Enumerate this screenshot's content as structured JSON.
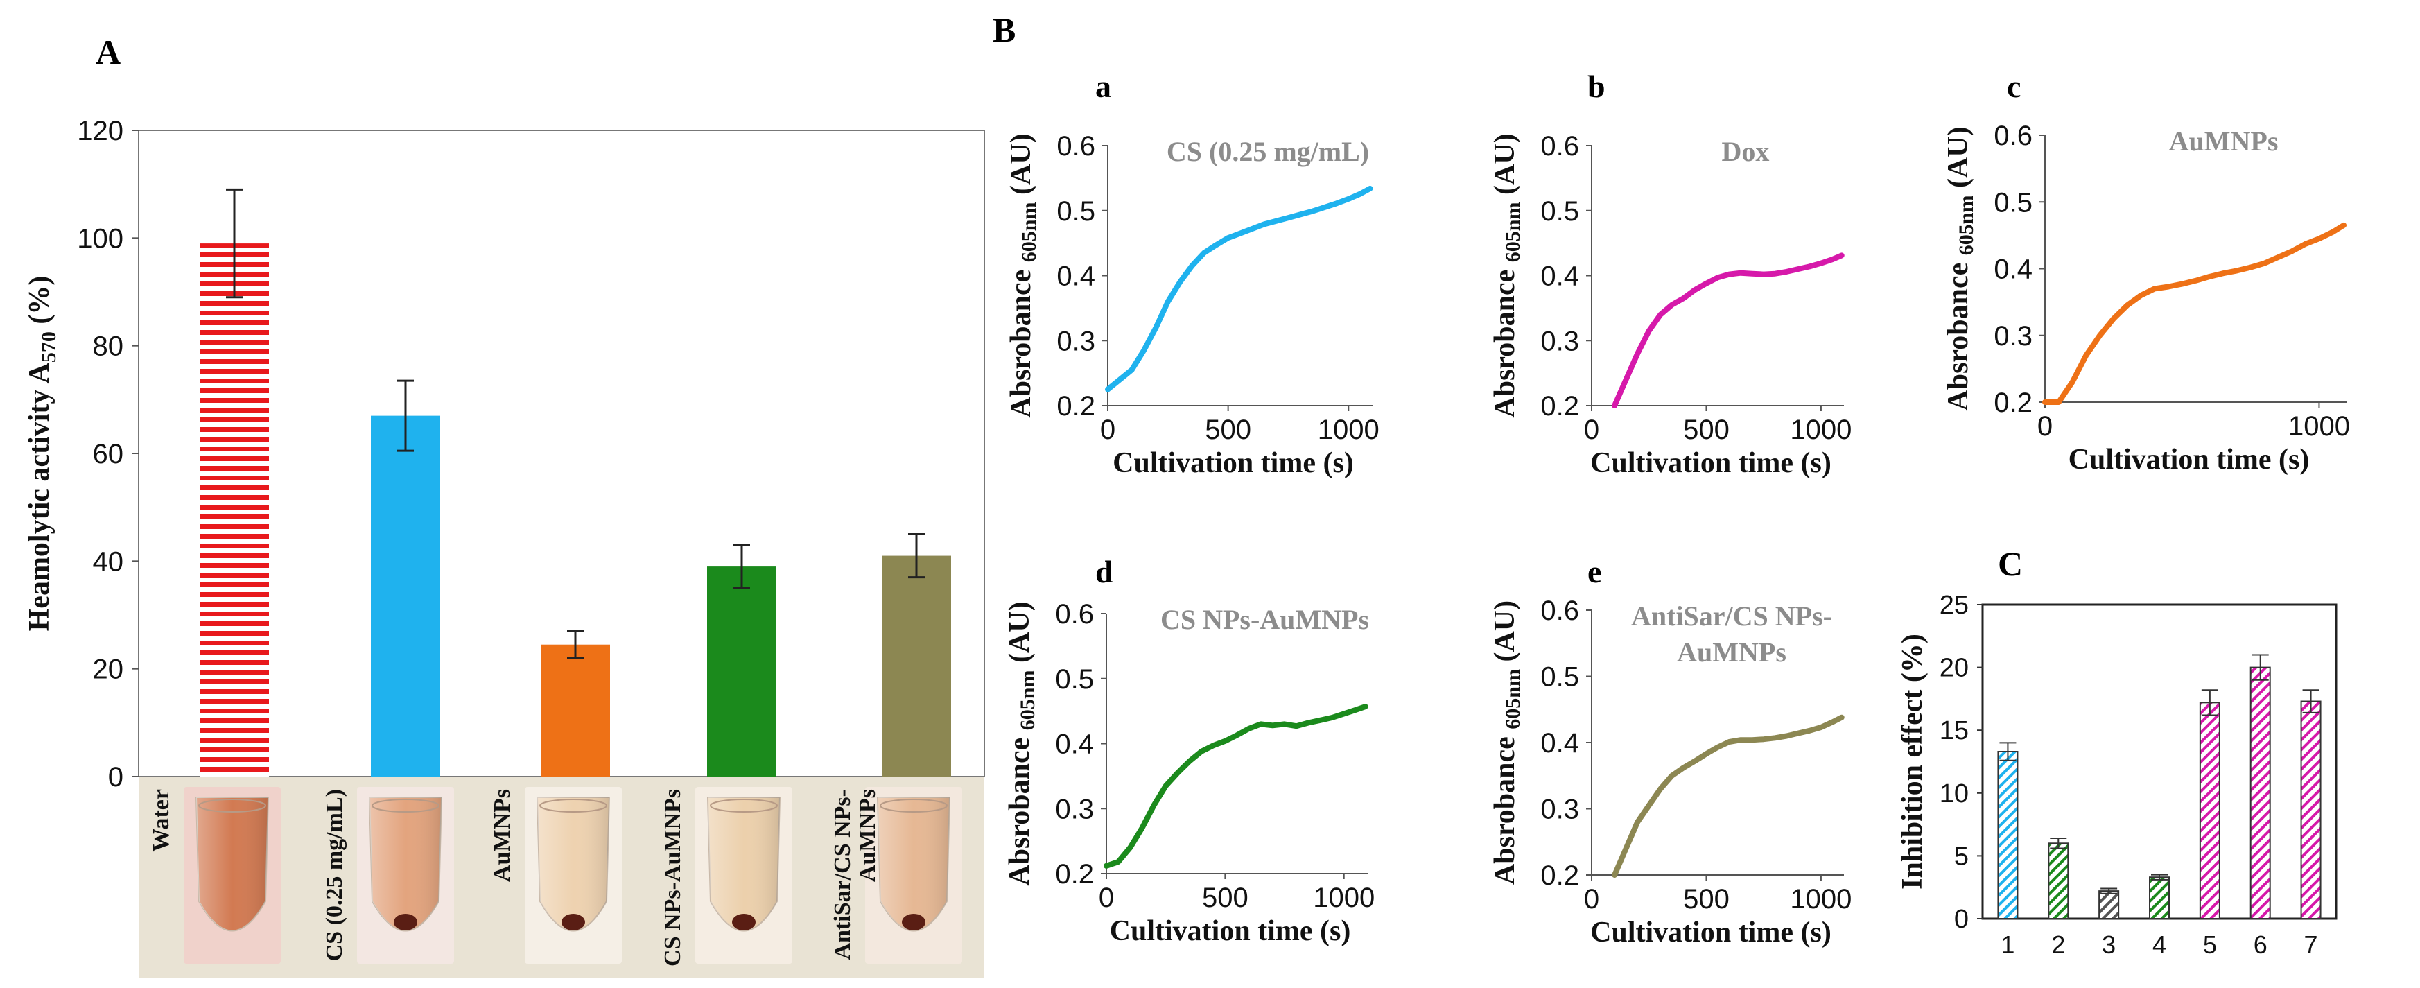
{
  "panel_labels": {
    "A": "A",
    "B": "B",
    "C": "C"
  },
  "chart_data": [
    {
      "id": "A",
      "type": "bar",
      "ylabel_main": "Heamolytic activity",
      "ylabel_chem": "A",
      "ylabel_sub": "570",
      "ylabel_unit": "(%)",
      "ylim": [
        0,
        120
      ],
      "yticks": [
        "0",
        "20",
        "40",
        "60",
        "80",
        "100",
        "120"
      ],
      "categories": [
        "Water",
        "CS (0.25 mg/mL)",
        "AuMNPs",
        "CS NPs-AuMNPs",
        "AntiSar/CS NPs-AuMNPs"
      ],
      "tube_labels": [
        [
          "Water"
        ],
        [
          "CS (0.25 mg/mL)"
        ],
        [
          "AuMNPs"
        ],
        [
          "CS NPs-AuMNPs"
        ],
        [
          "AntiSar/CS NPs-",
          "AuMNPs"
        ]
      ],
      "values": [
        99,
        67,
        24.5,
        39,
        41
      ],
      "errors": [
        10,
        6.5,
        2.5,
        4,
        4
      ],
      "colors": [
        "#e8191c",
        "#1fb2ee",
        "#ee7116",
        "#1b8a1c",
        "#8c8752"
      ],
      "patterns": [
        "hstripes",
        "solid",
        "solid",
        "solid",
        "solid"
      ]
    },
    {
      "id": "a",
      "type": "line",
      "title": "CS (0.25 mg/mL)",
      "color": "#1fb2ee",
      "xlabel": "Cultivation  time (s)",
      "ylabel": "Absrobance",
      "ylabel_sub": "605nm",
      "ylabel_unit": "(AU)",
      "xlim": [
        0,
        1100
      ],
      "ylim": [
        0.2,
        0.6
      ],
      "xticks": [
        "0",
        "500",
        "1000"
      ],
      "yticks": [
        "0.2",
        "0.3",
        "0.4",
        "0.5",
        "0.6"
      ],
      "x": [
        0,
        50,
        100,
        150,
        200,
        250,
        300,
        350,
        400,
        450,
        500,
        550,
        600,
        650,
        700,
        750,
        800,
        850,
        900,
        950,
        1000,
        1050,
        1090
      ],
      "y": [
        0.225,
        0.24,
        0.255,
        0.285,
        0.32,
        0.36,
        0.39,
        0.415,
        0.435,
        0.447,
        0.458,
        0.465,
        0.472,
        0.479,
        0.484,
        0.489,
        0.494,
        0.499,
        0.505,
        0.511,
        0.518,
        0.526,
        0.534
      ]
    },
    {
      "id": "b",
      "type": "line",
      "title": "Dox",
      "color": "#d619aa",
      "xlabel": "Cultivation  time (s)",
      "ylabel": "Absrobance",
      "ylabel_sub": "605nm",
      "ylabel_unit": "(AU)",
      "xlim": [
        0,
        1100
      ],
      "ylim": [
        0.2,
        0.6
      ],
      "xticks": [
        "0",
        "500",
        "1000"
      ],
      "yticks": [
        "0.2",
        "0.3",
        "0.4",
        "0.5",
        "0.6"
      ],
      "x": [
        100,
        150,
        200,
        250,
        300,
        350,
        400,
        450,
        500,
        550,
        600,
        650,
        700,
        750,
        800,
        850,
        900,
        950,
        1000,
        1050,
        1090
      ],
      "y": [
        0.2,
        0.24,
        0.28,
        0.315,
        0.34,
        0.355,
        0.365,
        0.378,
        0.388,
        0.397,
        0.402,
        0.404,
        0.403,
        0.402,
        0.403,
        0.406,
        0.41,
        0.414,
        0.419,
        0.425,
        0.431
      ]
    },
    {
      "id": "c",
      "type": "line",
      "title": "AuMNPs",
      "color": "#ee7116",
      "xlabel": "Cultivation  time (s)",
      "ylabel": "Absrobance",
      "ylabel_sub": "605nm",
      "ylabel_unit": "(AU)",
      "xlim": [
        0,
        1100
      ],
      "ylim": [
        0.2,
        0.6
      ],
      "xticks": [
        "0",
        "1000"
      ],
      "yticks": [
        "0.2",
        "0.3",
        "0.4",
        "0.5",
        "0.6"
      ],
      "x": [
        0,
        50,
        100,
        150,
        200,
        250,
        300,
        350,
        400,
        450,
        500,
        550,
        600,
        650,
        700,
        750,
        800,
        850,
        900,
        950,
        1000,
        1050,
        1090
      ],
      "y": [
        0.2,
        0.2,
        0.23,
        0.27,
        0.3,
        0.325,
        0.345,
        0.36,
        0.37,
        0.373,
        0.377,
        0.382,
        0.388,
        0.393,
        0.397,
        0.402,
        0.408,
        0.417,
        0.426,
        0.437,
        0.445,
        0.455,
        0.465
      ]
    },
    {
      "id": "d",
      "type": "line",
      "title": "CS NPs-AuMNPs",
      "color": "#1b8a1c",
      "xlabel": "Cultivation  time (s)",
      "ylabel": "Absrobance",
      "ylabel_sub": "605nm",
      "ylabel_unit": "(AU)",
      "xlim": [
        0,
        1100
      ],
      "ylim": [
        0.2,
        0.6
      ],
      "xticks": [
        "0",
        "500",
        "1000"
      ],
      "yticks": [
        "0.2",
        "0.3",
        "0.4",
        "0.5",
        "0.6"
      ],
      "x": [
        0,
        50,
        100,
        150,
        200,
        250,
        300,
        350,
        400,
        450,
        500,
        550,
        600,
        650,
        700,
        750,
        800,
        850,
        900,
        950,
        1000,
        1050,
        1090
      ],
      "y": [
        0.212,
        0.218,
        0.24,
        0.27,
        0.305,
        0.335,
        0.355,
        0.373,
        0.388,
        0.397,
        0.404,
        0.413,
        0.423,
        0.43,
        0.428,
        0.43,
        0.427,
        0.432,
        0.436,
        0.44,
        0.446,
        0.452,
        0.457
      ]
    },
    {
      "id": "e",
      "type": "line",
      "title_lines": [
        "AntiSar/CS  NPs-",
        "AuMNPs"
      ],
      "color": "#8c8752",
      "xlabel": "Cultivation  time (s)",
      "ylabel": "Absrobance",
      "ylabel_sub": "605nm",
      "ylabel_unit": "(AU)",
      "xlim": [
        0,
        1100
      ],
      "ylim": [
        0.2,
        0.6
      ],
      "xticks": [
        "0",
        "500",
        "1000"
      ],
      "yticks": [
        "0.2",
        "0.3",
        "0.4",
        "0.5",
        "0.6"
      ],
      "x": [
        100,
        150,
        200,
        250,
        300,
        350,
        400,
        450,
        500,
        550,
        600,
        650,
        700,
        750,
        800,
        850,
        900,
        950,
        1000,
        1050,
        1090
      ],
      "y": [
        0.2,
        0.24,
        0.28,
        0.305,
        0.33,
        0.35,
        0.362,
        0.372,
        0.383,
        0.393,
        0.401,
        0.404,
        0.404,
        0.405,
        0.407,
        0.41,
        0.414,
        0.418,
        0.423,
        0.431,
        0.438
      ]
    },
    {
      "id": "C",
      "type": "bar",
      "ylabel": "Inhibition  effect (%)",
      "ylim": [
        0,
        25
      ],
      "yticks": [
        "0",
        "5",
        "10",
        "15",
        "20",
        "25"
      ],
      "categories": [
        "1",
        "2",
        "3",
        "4",
        "5",
        "6",
        "7"
      ],
      "values": [
        13.3,
        6.0,
        2.2,
        3.3,
        17.2,
        20.0,
        17.3
      ],
      "errors": [
        0.7,
        0.4,
        0.2,
        0.2,
        1.0,
        1.0,
        0.9
      ],
      "colors": [
        "#1fb2ee",
        "#1b8a1c",
        "#555555",
        "#1b8a1c",
        "#d619aa",
        "#d619aa",
        "#d619aa"
      ],
      "patterns": [
        "diag",
        "diag",
        "diag",
        "diag",
        "diag",
        "diag",
        "diag"
      ]
    }
  ]
}
